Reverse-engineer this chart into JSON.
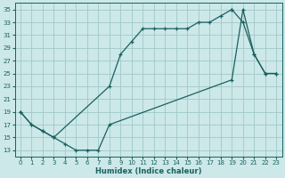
{
  "title": "",
  "xlabel": "Humidex (Indice chaleur)",
  "bg_color": "#cce8e8",
  "grid_color": "#a0c8c8",
  "line_color": "#1a6060",
  "xlim": [
    -0.5,
    23.5
  ],
  "ylim": [
    12,
    36
  ],
  "xticks": [
    0,
    1,
    2,
    3,
    4,
    5,
    6,
    7,
    8,
    9,
    10,
    11,
    12,
    13,
    14,
    15,
    16,
    17,
    18,
    19,
    20,
    21,
    22,
    23
  ],
  "yticks": [
    13,
    15,
    17,
    19,
    21,
    23,
    25,
    27,
    29,
    31,
    33,
    35
  ],
  "curve_top_x": [
    0,
    1,
    2,
    3,
    8,
    9,
    10,
    11,
    12,
    13,
    14,
    15,
    16,
    17,
    18,
    19
  ],
  "curve_top_y": [
    19,
    17,
    16,
    15,
    23,
    28,
    30,
    32,
    32,
    32,
    32,
    32,
    33,
    33,
    34,
    35
  ],
  "curve_right_x": [
    19,
    20,
    21,
    22,
    23
  ],
  "curve_right_y": [
    35,
    33,
    28,
    25,
    25
  ],
  "curve_bottom_x": [
    0,
    1,
    2,
    3,
    4,
    5,
    6,
    7,
    8,
    19,
    20,
    21,
    22,
    23
  ],
  "curve_bottom_y": [
    19,
    17,
    16,
    15,
    14,
    13,
    13,
    13,
    17,
    24,
    35,
    28,
    25,
    25
  ]
}
